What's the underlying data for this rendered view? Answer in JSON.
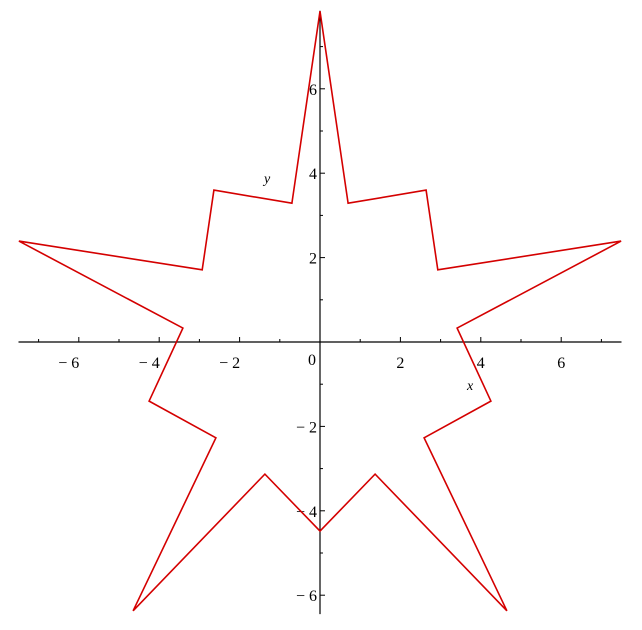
{
  "chart_data": {
    "type": "line",
    "title": "",
    "xlabel": "x",
    "ylabel": "y",
    "xlim": [
      -7.5,
      7.5
    ],
    "ylim": [
      -6.4,
      7.85
    ],
    "grid": false,
    "x_ticks": [
      -6,
      -4,
      -2,
      0,
      2,
      4,
      6
    ],
    "x_tick_labels": [
      "− 6",
      "− 4",
      "− 2",
      "0",
      "2",
      "4",
      "6"
    ],
    "y_ticks": [
      -6,
      -4,
      -2,
      2,
      4,
      6
    ],
    "y_tick_labels": [
      "− 6",
      "− 4",
      "− 2",
      "2",
      "4",
      "6"
    ],
    "series": [
      {
        "color": "#d40000",
        "closed": true,
        "x": [
          0,
          0.7,
          2.64,
          2.93,
          7.49,
          3.41,
          4.25,
          2.59,
          4.65,
          1.37,
          0,
          -1.37,
          -4.65,
          -2.59,
          -4.25,
          -3.41,
          -7.49,
          -2.93,
          -2.64,
          -0.7
        ],
        "y": [
          7.84,
          3.29,
          3.6,
          1.71,
          2.39,
          0.33,
          -1.4,
          -2.27,
          -6.37,
          -3.13,
          -4.48,
          -3.13,
          -6.37,
          -2.27,
          -1.4,
          0.33,
          2.39,
          1.71,
          3.6,
          3.29
        ]
      }
    ]
  }
}
